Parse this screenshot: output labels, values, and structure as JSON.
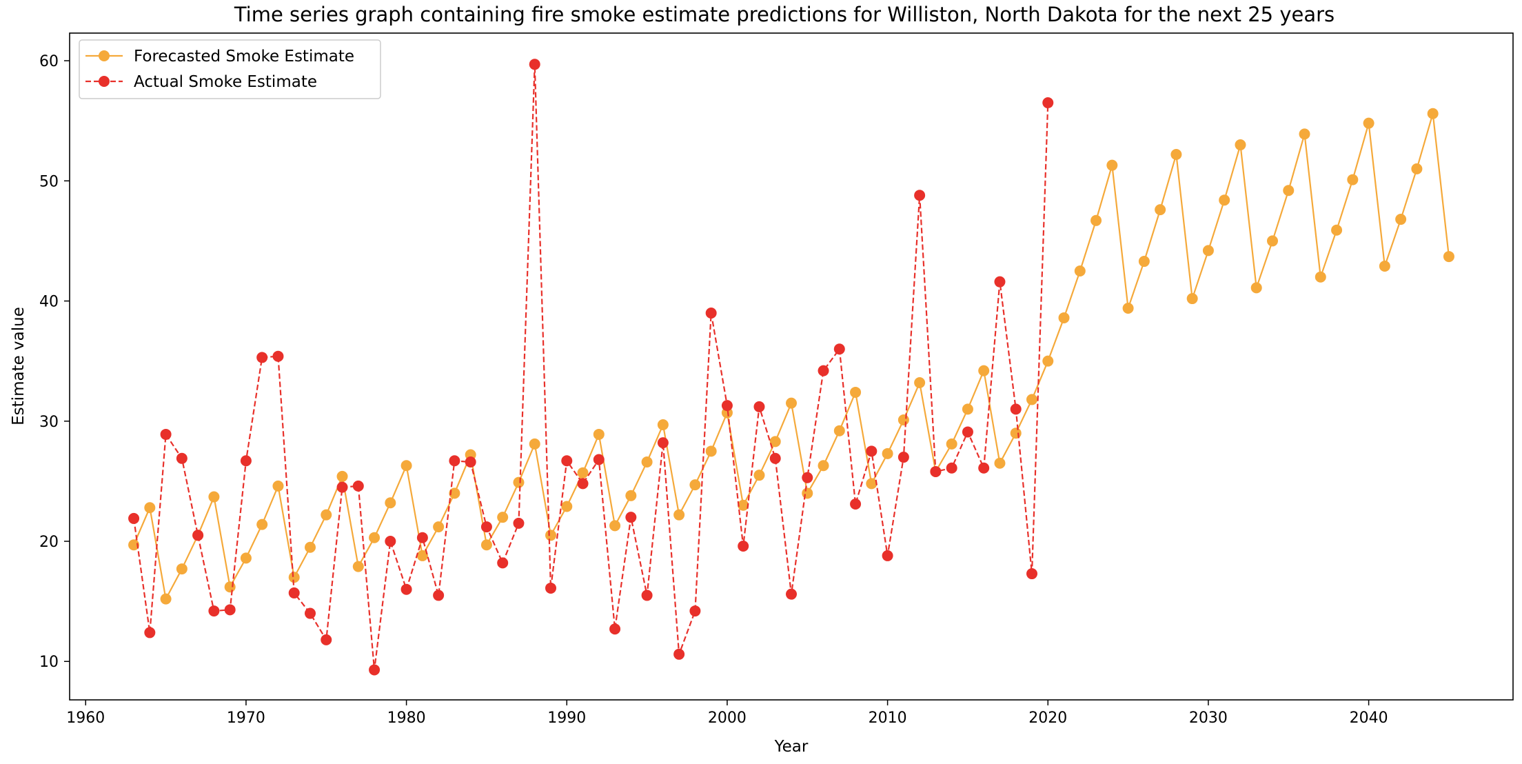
{
  "chart_data": {
    "type": "line",
    "title": "Time series graph containing fire smoke estimate predictions for Williston, North Dakota for the next 25 years",
    "xlabel": "Year",
    "ylabel": "Estimate value",
    "xlim": [
      1959,
      2049
    ],
    "ylim": [
      6.8,
      62.3
    ],
    "xticks": [
      1960,
      1970,
      1980,
      1990,
      2000,
      2010,
      2020,
      2030,
      2040
    ],
    "yticks": [
      10,
      20,
      30,
      40,
      50,
      60
    ],
    "grid": false,
    "legend_position": "top-left",
    "series": [
      {
        "name": "Forecasted Smoke Estimate",
        "color": "#f5a93a",
        "line_style": "solid",
        "marker": "circle",
        "x_start": 1963,
        "values": [
          19.7,
          22.8,
          15.2,
          17.7,
          20.5,
          23.7,
          16.2,
          18.6,
          21.4,
          24.6,
          17.0,
          19.5,
          22.2,
          25.4,
          17.9,
          20.3,
          23.2,
          26.3,
          18.8,
          21.2,
          24.0,
          27.2,
          19.7,
          22.0,
          24.9,
          28.1,
          20.5,
          22.9,
          25.7,
          28.9,
          21.3,
          23.8,
          26.6,
          29.7,
          22.2,
          24.7,
          27.5,
          30.7,
          23.0,
          25.5,
          28.3,
          31.5,
          24.0,
          26.3,
          29.2,
          32.4,
          24.8,
          27.3,
          30.1,
          33.2,
          25.8,
          28.1,
          31.0,
          34.2,
          26.5,
          29.0,
          31.8,
          35.0,
          38.6,
          42.5,
          46.7,
          51.3,
          39.4,
          43.3,
          47.6,
          52.2,
          40.2,
          44.2,
          48.4,
          53.0,
          41.1,
          45.0,
          49.2,
          53.9,
          42.0,
          45.9,
          50.1,
          54.8,
          42.9,
          46.8,
          51.0,
          55.6,
          43.7
        ]
      },
      {
        "name": "Actual Smoke Estimate",
        "color": "#e8302a",
        "line_style": "dashed",
        "marker": "circle",
        "x_start": 1963,
        "values": [
          21.9,
          12.4,
          28.9,
          26.9,
          20.5,
          14.2,
          14.3,
          26.7,
          35.3,
          35.4,
          15.7,
          14.0,
          11.8,
          24.5,
          24.6,
          9.3,
          20.0,
          16.0,
          20.3,
          15.5,
          26.7,
          26.6,
          21.2,
          18.2,
          21.5,
          59.7,
          16.1,
          26.7,
          24.8,
          26.8,
          12.7,
          22.0,
          15.5,
          28.2,
          10.6,
          14.2,
          39.0,
          31.3,
          19.6,
          31.2,
          26.9,
          15.6,
          25.3,
          34.2,
          36.0,
          23.1,
          27.5,
          18.8,
          27.0,
          48.8,
          25.8,
          26.1,
          29.1,
          26.1,
          41.6,
          31.0,
          17.3,
          56.5
        ]
      }
    ]
  }
}
